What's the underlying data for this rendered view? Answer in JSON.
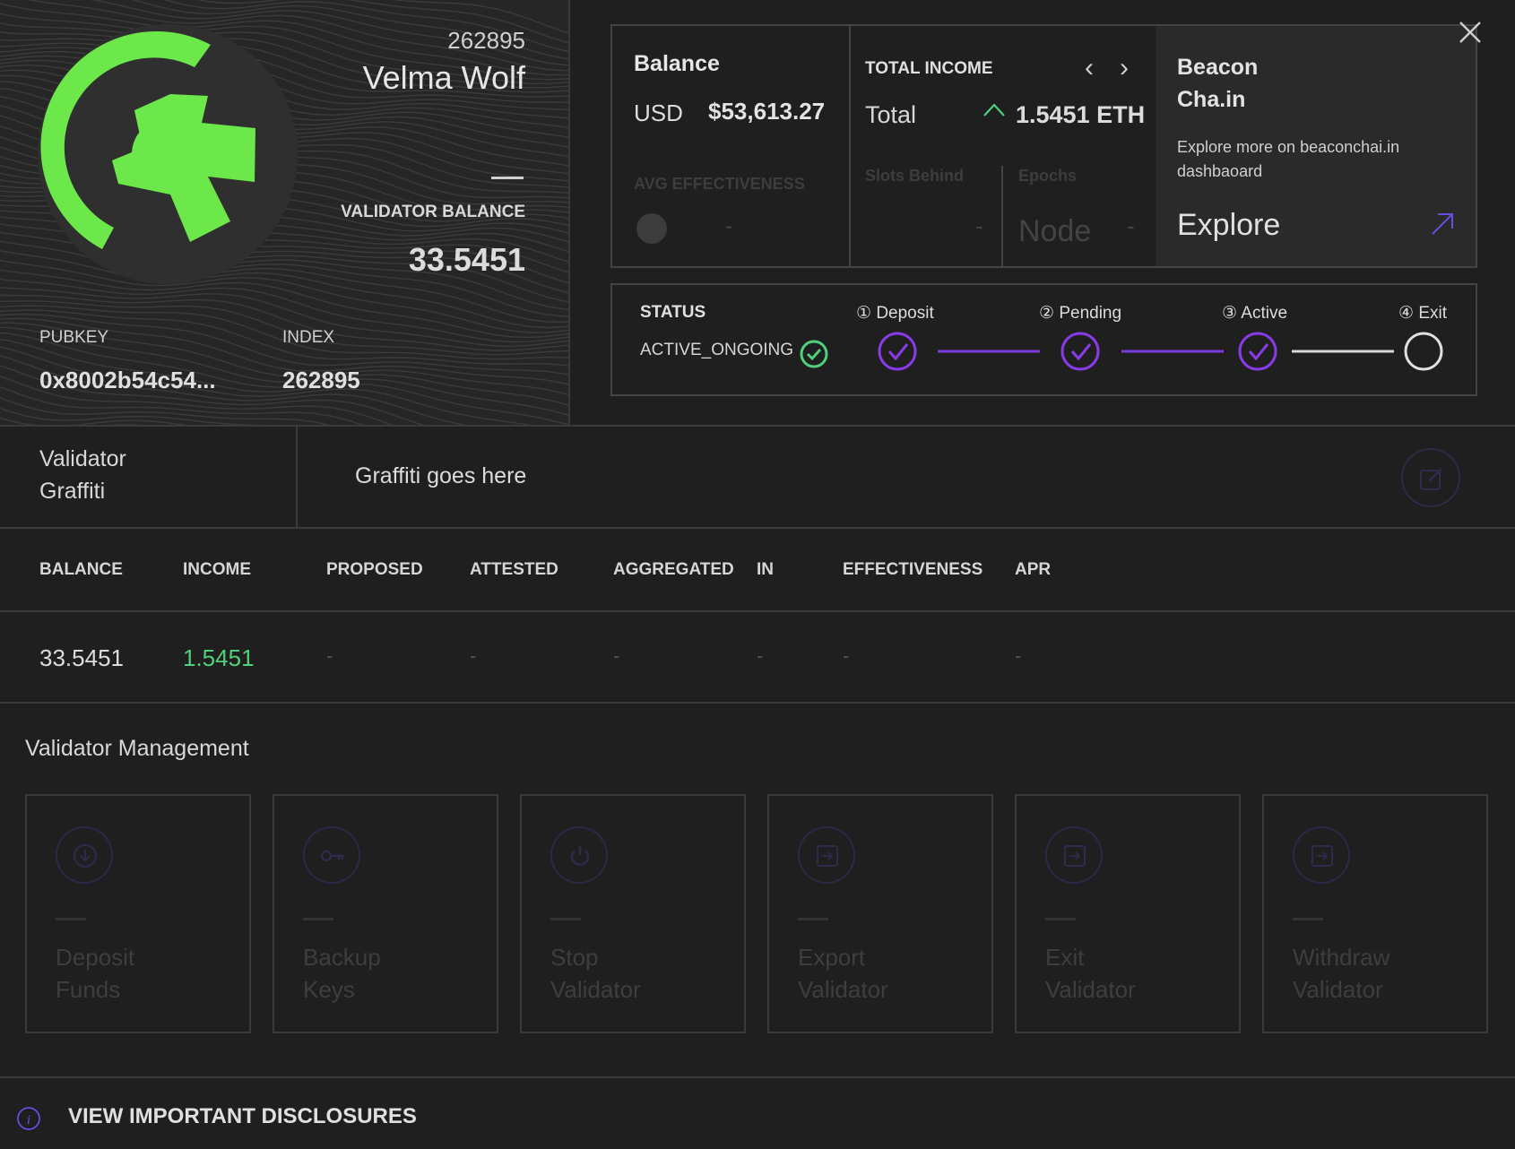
{
  "validator": {
    "id_top": "262895",
    "name": "Velma Wolf",
    "balance_label": "VALIDATOR BALANCE",
    "balance": "33.5451",
    "pubkey_label": "PUBKEY",
    "pubkey": "0x8002b54c54...",
    "index_label": "INDEX",
    "index": "262895"
  },
  "balance_card": {
    "title": "Balance",
    "currency": "USD",
    "amount": "$53,613.27",
    "avg_label": "AVG EFFECTIVENESS",
    "avg_value": "-"
  },
  "income_card": {
    "title": "TOTAL INCOME",
    "total_label": "Total",
    "total_value": "1.5451 ETH",
    "slots_label": "Slots Behind",
    "slots_value": "-",
    "epochs_label": "Epochs",
    "epochs_node": "Node",
    "epochs_value": "-"
  },
  "beacon_card": {
    "title_line1": "Beacon",
    "title_line2": "Cha.in",
    "desc": "Explore more on beaconchai.in dashbaoard",
    "cta": "Explore"
  },
  "status": {
    "label": "STATUS",
    "value": "ACTIVE_ONGOING",
    "steps": [
      {
        "num": "①",
        "label": "Deposit",
        "done": true
      },
      {
        "num": "②",
        "label": "Pending",
        "done": true
      },
      {
        "num": "③",
        "label": "Active",
        "done": true
      },
      {
        "num": "④",
        "label": "Exit",
        "done": false
      }
    ]
  },
  "graffiti": {
    "label_line1": "Validator",
    "label_line2": "Graffiti",
    "value": "Graffiti goes here"
  },
  "stats": {
    "headers": [
      "BALANCE",
      "INCOME",
      "PROPOSED",
      "ATTESTED",
      "AGGREGATED",
      "IN",
      "EFFECTIVENESS",
      "APR"
    ],
    "values": [
      "33.5451",
      "1.5451",
      "-",
      "-",
      "-",
      "-",
      "-",
      "-"
    ]
  },
  "management": {
    "title": "Validator Management",
    "actions": [
      {
        "line1": "Deposit",
        "line2": "Funds",
        "icon": "download-icon"
      },
      {
        "line1": "Backup",
        "line2": "Keys",
        "icon": "key-icon"
      },
      {
        "line1": "Stop",
        "line2": "Validator",
        "icon": "power-icon"
      },
      {
        "line1": "Export",
        "line2": "Validator",
        "icon": "export-icon"
      },
      {
        "line1": "Exit",
        "line2": "Validator",
        "icon": "exit-icon"
      },
      {
        "line1": "Withdraw",
        "line2": "Validator",
        "icon": "withdraw-icon"
      }
    ]
  },
  "disclosures": {
    "text": "VIEW IMPORTANT DISCLOSURES"
  },
  "colors": {
    "accent_green": "#4ed07a",
    "avatar_green": "#6ce84a",
    "accent_purple": "#8a3be8",
    "background": "#1f1f1f"
  }
}
